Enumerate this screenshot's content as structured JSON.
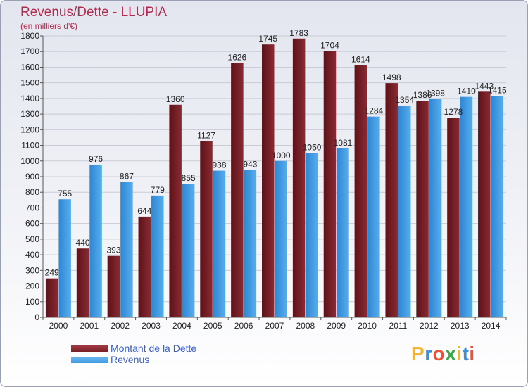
{
  "title": "Revenus/Dette - LLUPIA",
  "subtitle": "(en milliers d'€)",
  "colors": {
    "dette": "#7a1f27",
    "revenus": "#3f9be3",
    "title": "#b22a4e",
    "legend_text": "#3a5fd0"
  },
  "legend": [
    {
      "label": "Montant de la Dette",
      "color": "#7a1f27"
    },
    {
      "label": "Revenus",
      "color": "#3f9be3"
    }
  ],
  "logo": {
    "letters": [
      "P",
      "r",
      "o",
      "x",
      "i",
      "t",
      "i"
    ],
    "colors": [
      "#f0b53a",
      "#3a8fd8",
      "#e8523b",
      "#39a845",
      "#f0b53a",
      "#3a8fd8",
      "#e8523b"
    ]
  },
  "chart_data": {
    "type": "bar",
    "categories": [
      "2000",
      "2001",
      "2002",
      "2003",
      "2004",
      "2005",
      "2006",
      "2007",
      "2008",
      "2009",
      "2010",
      "2011",
      "2012",
      "2013",
      "2014"
    ],
    "series": [
      {
        "name": "Montant de la Dette",
        "values": [
          249,
          440,
          393,
          644,
          1360,
          1127,
          1626,
          1745,
          1783,
          1704,
          1614,
          1498,
          1386,
          1278,
          1443
        ]
      },
      {
        "name": "Revenus",
        "values": [
          755,
          976,
          867,
          779,
          855,
          938,
          943,
          1000,
          1050,
          1081,
          1284,
          1354,
          1398,
          1410,
          1415
        ]
      }
    ],
    "ylim": [
      0,
      1800
    ],
    "yticks": [
      0,
      100,
      200,
      300,
      400,
      500,
      600,
      700,
      800,
      900,
      1000,
      1100,
      1200,
      1300,
      1400,
      1500,
      1600,
      1700,
      1800
    ],
    "grid": true
  }
}
